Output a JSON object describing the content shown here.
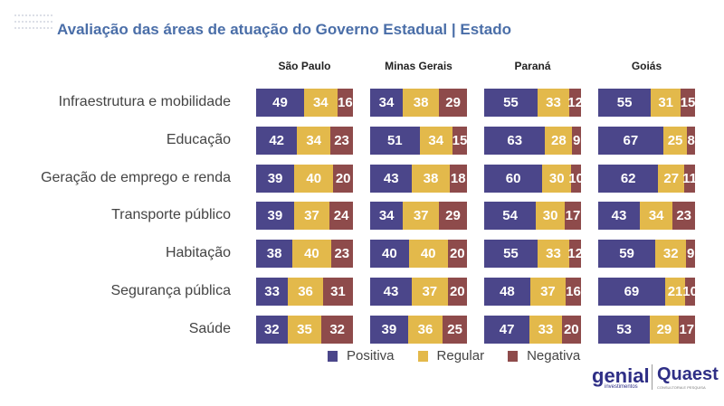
{
  "title": "Avaliação das áreas de atuação do Governo Estadual | Estado",
  "colors": {
    "title": "#4a6ea8",
    "Positiva": "#4b468a",
    "Regular": "#e3b94b",
    "Negativa": "#8e4b4b"
  },
  "chart_data": {
    "type": "bar",
    "stacked": true,
    "orientation": "horizontal",
    "title": "Avaliação das áreas de atuação do Governo Estadual | Estado",
    "categories": [
      "Infraestrutura e mobilidade",
      "Educação",
      "Geração de emprego e renda",
      "Transporte público",
      "Habitação",
      "Segurança pública",
      "Saúde"
    ],
    "panels": [
      "São Paulo",
      "Minas Gerais",
      "Paraná",
      "Goiás"
    ],
    "series_names": [
      "Positiva",
      "Regular",
      "Negativa"
    ],
    "legend": "bottom",
    "values": {
      "São Paulo": [
        [
          49,
          34,
          16
        ],
        [
          42,
          34,
          23
        ],
        [
          39,
          40,
          20
        ],
        [
          39,
          37,
          24
        ],
        [
          38,
          40,
          23
        ],
        [
          33,
          36,
          31
        ],
        [
          32,
          35,
          32
        ]
      ],
      "Minas Gerais": [
        [
          34,
          38,
          29
        ],
        [
          51,
          34,
          15
        ],
        [
          43,
          38,
          18
        ],
        [
          34,
          37,
          29
        ],
        [
          40,
          40,
          20
        ],
        [
          43,
          37,
          20
        ],
        [
          39,
          36,
          25
        ]
      ],
      "Paraná": [
        [
          55,
          33,
          12
        ],
        [
          63,
          28,
          9
        ],
        [
          60,
          30,
          10
        ],
        [
          54,
          30,
          17
        ],
        [
          55,
          33,
          12
        ],
        [
          48,
          37,
          16
        ],
        [
          47,
          33,
          20
        ]
      ],
      "Goiás": [
        [
          55,
          31,
          15
        ],
        [
          67,
          25,
          8
        ],
        [
          62,
          27,
          11
        ],
        [
          43,
          34,
          23
        ],
        [
          59,
          32,
          9
        ],
        [
          69,
          21,
          10
        ],
        [
          53,
          29,
          17
        ]
      ]
    }
  },
  "logos": {
    "genial": "genial",
    "genial_sub": "investimentos",
    "quaest": "Quaest",
    "quaest_sub": "CONSULTORIA E PESQUISA"
  }
}
